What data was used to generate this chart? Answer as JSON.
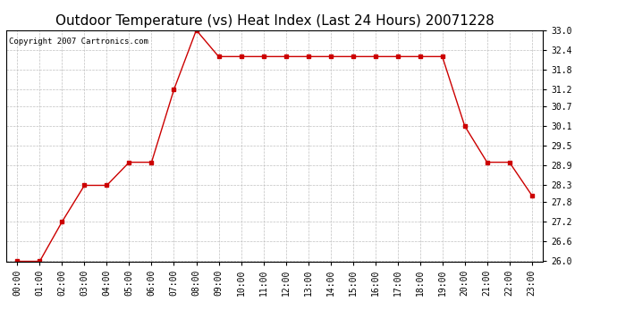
{
  "title": "Outdoor Temperature (vs) Heat Index (Last 24 Hours) 20071228",
  "copyright_text": "Copyright 2007 Cartronics.com",
  "x_labels": [
    "00:00",
    "01:00",
    "02:00",
    "03:00",
    "04:00",
    "05:00",
    "06:00",
    "07:00",
    "08:00",
    "09:00",
    "10:00",
    "11:00",
    "12:00",
    "13:00",
    "14:00",
    "15:00",
    "16:00",
    "17:00",
    "18:00",
    "19:00",
    "20:00",
    "21:00",
    "22:00",
    "23:00"
  ],
  "y_values": [
    26.0,
    26.0,
    27.2,
    28.3,
    28.3,
    29.0,
    29.0,
    31.2,
    33.0,
    32.2,
    32.2,
    32.2,
    32.2,
    32.2,
    32.2,
    32.2,
    32.2,
    32.2,
    32.2,
    32.2,
    30.1,
    29.0,
    29.0,
    28.0
  ],
  "line_color": "#cc0000",
  "marker": "s",
  "marker_size": 3,
  "background_color": "#ffffff",
  "plot_bg_color": "#ffffff",
  "grid_color": "#c0c0c0",
  "ylim_min": 26.0,
  "ylim_max": 33.0,
  "ytick_values": [
    26.0,
    26.6,
    27.2,
    27.8,
    28.3,
    28.9,
    29.5,
    30.1,
    30.7,
    31.2,
    31.8,
    32.4,
    33.0
  ],
  "ytick_labels": [
    "26.0",
    "26.6",
    "27.2",
    "27.8",
    "28.3",
    "28.9",
    "29.5",
    "30.1",
    "30.7",
    "31.2",
    "31.8",
    "32.4",
    "33.0"
  ],
  "title_fontsize": 11,
  "copyright_fontsize": 6.5,
  "tick_fontsize": 7,
  "ylabel_right_fontsize": 7
}
